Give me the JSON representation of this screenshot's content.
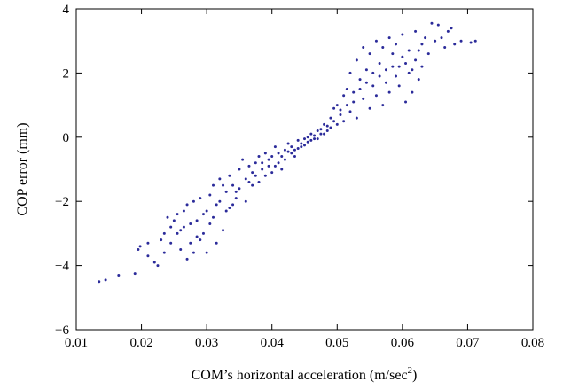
{
  "chart_data": {
    "type": "scatter",
    "title": "",
    "xlabel": "COM’s horizontal acceleration (m/sec",
    "xlabel_sup": "2",
    "xlabel_suffix": ")",
    "ylabel": "COP error (mm)",
    "xlim": [
      0.01,
      0.08
    ],
    "ylim": [
      -6,
      4
    ],
    "xticks": [
      "0.01",
      "0.02",
      "0.03",
      "0.04",
      "0.05",
      "0.06",
      "0.07",
      "0.08"
    ],
    "yticks": [
      "4",
      "2",
      "0",
      "−2",
      "−4",
      "−6"
    ],
    "xtick_values": [
      0.01,
      0.02,
      0.03,
      0.04,
      0.05,
      0.06,
      0.07,
      0.08
    ],
    "ytick_values": [
      4,
      2,
      0,
      -2,
      -4,
      -6
    ],
    "grid": false,
    "marker_color": "#2b2b9a",
    "series": [
      {
        "points": [
          [
            0.0135,
            -4.5
          ],
          [
            0.0145,
            -4.45
          ],
          [
            0.0165,
            -4.3
          ],
          [
            0.019,
            -4.25
          ],
          [
            0.0195,
            -3.5
          ],
          [
            0.0198,
            -3.4
          ],
          [
            0.021,
            -3.7
          ],
          [
            0.021,
            -3.3
          ],
          [
            0.022,
            -3.9
          ],
          [
            0.023,
            -3.2
          ],
          [
            0.0235,
            -3.0
          ],
          [
            0.024,
            -2.5
          ],
          [
            0.0245,
            -3.3
          ],
          [
            0.025,
            -2.6
          ],
          [
            0.0255,
            -2.4
          ],
          [
            0.026,
            -3.5
          ],
          [
            0.026,
            -2.9
          ],
          [
            0.0265,
            -2.3
          ],
          [
            0.027,
            -3.8
          ],
          [
            0.027,
            -2.1
          ],
          [
            0.0275,
            -2.7
          ],
          [
            0.028,
            -3.6
          ],
          [
            0.028,
            -2.0
          ],
          [
            0.0285,
            -2.6
          ],
          [
            0.029,
            -3.2
          ],
          [
            0.029,
            -1.9
          ],
          [
            0.0295,
            -3.0
          ],
          [
            0.03,
            -2.3
          ],
          [
            0.03,
            -3.6
          ],
          [
            0.0305,
            -2.7
          ],
          [
            0.031,
            -1.5
          ],
          [
            0.031,
            -2.5
          ],
          [
            0.0315,
            -3.3
          ],
          [
            0.032,
            -2.0
          ],
          [
            0.032,
            -1.3
          ],
          [
            0.0325,
            -2.9
          ],
          [
            0.033,
            -1.7
          ],
          [
            0.033,
            -2.3
          ],
          [
            0.0335,
            -1.2
          ],
          [
            0.034,
            -2.1
          ],
          [
            0.034,
            -1.5
          ],
          [
            0.0345,
            -1.9
          ],
          [
            0.035,
            -1.0
          ],
          [
            0.035,
            -1.6
          ],
          [
            0.0355,
            -0.7
          ],
          [
            0.036,
            -1.3
          ],
          [
            0.036,
            -2.0
          ],
          [
            0.0365,
            -0.9
          ],
          [
            0.037,
            -1.5
          ],
          [
            0.037,
            -1.1
          ],
          [
            0.0375,
            -0.8
          ],
          [
            0.038,
            -1.4
          ],
          [
            0.038,
            -0.6
          ],
          [
            0.0385,
            -1.0
          ],
          [
            0.039,
            -1.2
          ],
          [
            0.039,
            -0.5
          ],
          [
            0.0395,
            -0.9
          ],
          [
            0.04,
            -0.6
          ],
          [
            0.04,
            -1.1
          ],
          [
            0.0405,
            -0.3
          ],
          [
            0.041,
            -0.8
          ],
          [
            0.041,
            -0.5
          ],
          [
            0.0415,
            -1.0
          ],
          [
            0.042,
            -0.4
          ],
          [
            0.042,
            -0.7
          ],
          [
            0.0425,
            -0.2
          ],
          [
            0.043,
            -0.5
          ],
          [
            0.043,
            -0.3
          ],
          [
            0.0435,
            -0.6
          ],
          [
            0.044,
            -0.1
          ],
          [
            0.044,
            -0.35
          ],
          [
            0.0445,
            -0.2
          ],
          [
            0.045,
            -0.05
          ],
          [
            0.045,
            -0.25
          ],
          [
            0.0455,
            0.0
          ],
          [
            0.046,
            -0.1
          ],
          [
            0.046,
            0.1
          ],
          [
            0.0465,
            0.05
          ],
          [
            0.047,
            0.2
          ],
          [
            0.047,
            -0.05
          ],
          [
            0.0475,
            0.25
          ],
          [
            0.048,
            0.1
          ],
          [
            0.048,
            0.4
          ],
          [
            0.0485,
            0.2
          ],
          [
            0.049,
            0.6
          ],
          [
            0.049,
            0.3
          ],
          [
            0.0495,
            0.9
          ],
          [
            0.05,
            0.4
          ],
          [
            0.05,
            1.0
          ],
          [
            0.0505,
            0.7
          ],
          [
            0.051,
            1.3
          ],
          [
            0.051,
            0.5
          ],
          [
            0.0515,
            1.5
          ],
          [
            0.052,
            0.8
          ],
          [
            0.052,
            2.0
          ],
          [
            0.0525,
            1.1
          ],
          [
            0.053,
            2.4
          ],
          [
            0.053,
            0.6
          ],
          [
            0.0535,
            1.8
          ],
          [
            0.054,
            2.8
          ],
          [
            0.054,
            1.2
          ],
          [
            0.0545,
            2.1
          ],
          [
            0.055,
            0.9
          ],
          [
            0.055,
            2.6
          ],
          [
            0.0555,
            1.6
          ],
          [
            0.056,
            3.0
          ],
          [
            0.056,
            1.3
          ],
          [
            0.0565,
            2.3
          ],
          [
            0.057,
            1.0
          ],
          [
            0.057,
            2.8
          ],
          [
            0.0575,
            1.7
          ],
          [
            0.058,
            3.1
          ],
          [
            0.058,
            1.4
          ],
          [
            0.0585,
            2.2
          ],
          [
            0.059,
            1.9
          ],
          [
            0.059,
            2.9
          ],
          [
            0.0595,
            1.6
          ],
          [
            0.06,
            2.5
          ],
          [
            0.06,
            3.2
          ],
          [
            0.0605,
            1.1
          ],
          [
            0.061,
            2.0
          ],
          [
            0.061,
            2.7
          ],
          [
            0.0615,
            1.4
          ],
          [
            0.062,
            2.4
          ],
          [
            0.062,
            3.3
          ],
          [
            0.0625,
            1.8
          ],
          [
            0.063,
            2.9
          ],
          [
            0.063,
            2.2
          ],
          [
            0.0635,
            3.1
          ],
          [
            0.064,
            2.6
          ],
          [
            0.0645,
            3.55
          ],
          [
            0.065,
            3.0
          ],
          [
            0.0655,
            3.5
          ],
          [
            0.066,
            3.1
          ],
          [
            0.0665,
            2.8
          ],
          [
            0.067,
            3.3
          ],
          [
            0.0675,
            3.4
          ],
          [
            0.068,
            2.9
          ],
          [
            0.069,
            3.0
          ],
          [
            0.0705,
            2.95
          ],
          [
            0.0712,
            3.0
          ],
          [
            0.0345,
            -1.7
          ],
          [
            0.0365,
            -1.4
          ],
          [
            0.0375,
            -1.2
          ],
          [
            0.0385,
            -0.8
          ],
          [
            0.0395,
            -0.7
          ],
          [
            0.0405,
            -0.9
          ],
          [
            0.0415,
            -0.6
          ],
          [
            0.0425,
            -0.45
          ],
          [
            0.0435,
            -0.4
          ],
          [
            0.0445,
            -0.3
          ],
          [
            0.0455,
            -0.15
          ],
          [
            0.0465,
            -0.05
          ],
          [
            0.0475,
            0.1
          ],
          [
            0.0485,
            0.35
          ],
          [
            0.0495,
            0.5
          ],
          [
            0.0505,
            0.85
          ],
          [
            0.0515,
            1.0
          ],
          [
            0.0525,
            1.4
          ],
          [
            0.0535,
            1.5
          ],
          [
            0.0545,
            1.7
          ],
          [
            0.0555,
            2.0
          ],
          [
            0.0565,
            1.9
          ],
          [
            0.0575,
            2.1
          ],
          [
            0.0585,
            2.6
          ],
          [
            0.0595,
            2.2
          ],
          [
            0.0605,
            2.3
          ],
          [
            0.0615,
            2.1
          ],
          [
            0.0625,
            2.7
          ],
          [
            0.0335,
            -2.2
          ],
          [
            0.0325,
            -1.5
          ],
          [
            0.0315,
            -2.1
          ],
          [
            0.0305,
            -1.8
          ],
          [
            0.0295,
            -2.4
          ],
          [
            0.0285,
            -3.1
          ],
          [
            0.0275,
            -3.3
          ],
          [
            0.0265,
            -2.8
          ],
          [
            0.0255,
            -3.0
          ],
          [
            0.0245,
            -2.8
          ],
          [
            0.0235,
            -3.6
          ],
          [
            0.0225,
            -4.0
          ]
        ]
      }
    ]
  }
}
